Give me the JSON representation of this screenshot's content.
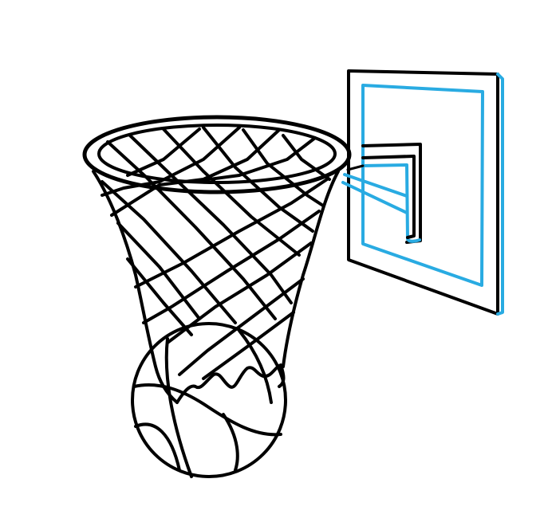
{
  "illustration": {
    "subject": "basketball-hoop-with-ball",
    "style": "line-drawing",
    "colors": {
      "background": "#ffffff",
      "outline": "#000000",
      "highlight": "#29abe2"
    },
    "parts": [
      "backboard",
      "backboard-inner-square",
      "hoop-bracket",
      "hoop-rim",
      "net",
      "basketball"
    ]
  }
}
